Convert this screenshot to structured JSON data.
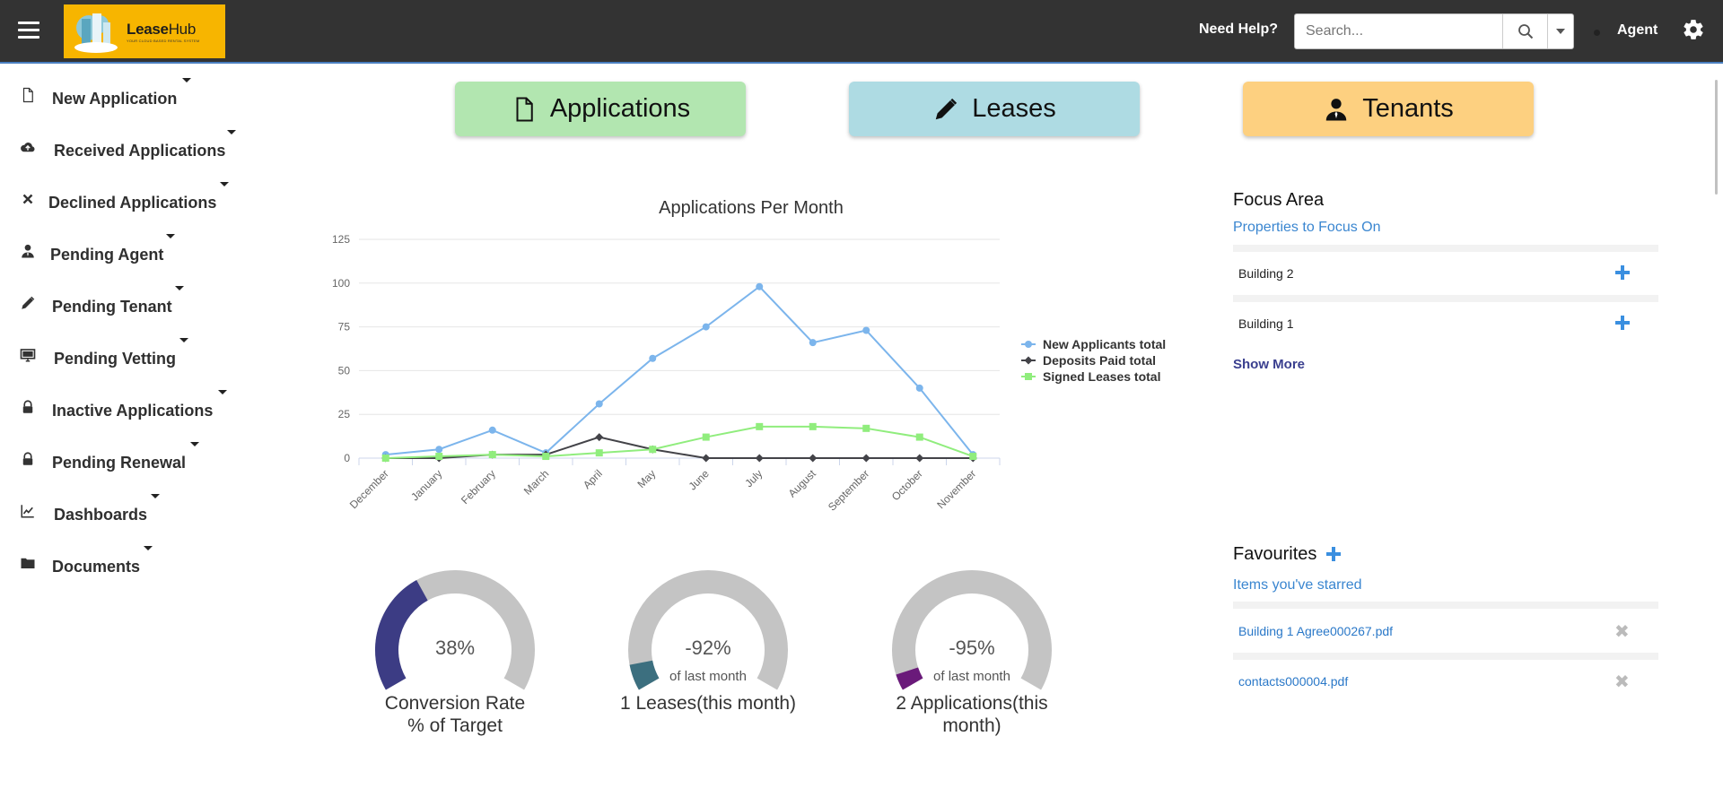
{
  "header": {
    "logo_name_bold": "Lease",
    "logo_name_light": "Hub",
    "logo_tagline": "YOUR CLOUD BASED RENTAL SYSTEM",
    "help_label": "Need Help?",
    "search_placeholder": "Search...",
    "user_label": "Agent"
  },
  "sidebar": {
    "items": [
      {
        "label": "New Application",
        "icon": "file-icon"
      },
      {
        "label": "Received Applications",
        "icon": "cloud-upload-icon"
      },
      {
        "label": "Declined Applications",
        "icon": "close-icon"
      },
      {
        "label": "Pending Agent",
        "icon": "user-icon"
      },
      {
        "label": "Pending Tenant",
        "icon": "pencil-icon"
      },
      {
        "label": "Pending Vetting",
        "icon": "monitor-icon"
      },
      {
        "label": "Inactive Applications",
        "icon": "lock-icon"
      },
      {
        "label": "Pending Renewal",
        "icon": "lock-icon"
      },
      {
        "label": "Dashboards",
        "icon": "line-chart-icon"
      },
      {
        "label": "Documents",
        "icon": "folder-icon"
      }
    ]
  },
  "quick_buttons": [
    {
      "label": "Applications",
      "icon": "file-icon",
      "color": "#b2e6b0"
    },
    {
      "label": "Leases",
      "icon": "pencil-icon",
      "color": "#aedbe3"
    },
    {
      "label": "Tenants",
      "icon": "user-icon",
      "color": "#fdd080"
    }
  ],
  "chart_data": {
    "type": "line",
    "title": "Applications Per Month",
    "categories": [
      "December",
      "January",
      "February",
      "March",
      "April",
      "May",
      "June",
      "July",
      "August",
      "September",
      "October",
      "November"
    ],
    "ylim": [
      0,
      125
    ],
    "yticks": [
      "0",
      "25",
      "50",
      "75",
      "100",
      "125"
    ],
    "grid": true,
    "legend_position": "right",
    "series": [
      {
        "name": "New Applicants total",
        "color": "#7cb5ec",
        "marker": "circle",
        "values": [
          2,
          5,
          16,
          3,
          31,
          57,
          75,
          98,
          66,
          73,
          40,
          2
        ]
      },
      {
        "name": "Deposits Paid total",
        "color": "#434348",
        "marker": "diamond",
        "values": [
          0,
          0,
          2,
          2,
          12,
          5,
          0,
          0,
          0,
          0,
          0,
          0
        ]
      },
      {
        "name": "Signed Leases total",
        "color": "#90ed7d",
        "marker": "square",
        "values": [
          0,
          1,
          2,
          1,
          3,
          5,
          12,
          18,
          18,
          17,
          12,
          1
        ]
      }
    ]
  },
  "gauges": [
    {
      "value_text": "38%",
      "fraction": 0.38,
      "sub": "",
      "title_line1": "Conversion Rate",
      "title_line2": "% of Target",
      "color": "#3c3c84"
    },
    {
      "value_text": "-92%",
      "fraction": 0.08,
      "sub": "of last month",
      "title_line1": "1 Leases(this month)",
      "title_line2": "",
      "color": "#3c6f7f"
    },
    {
      "value_text": "-95%",
      "fraction": 0.05,
      "sub": "of last month",
      "title_line1": "2 Applications(this",
      "title_line2": "month)",
      "color": "#6a1a7a"
    }
  ],
  "focus_area": {
    "title": "Focus Area",
    "subtitle": "Properties to Focus On",
    "items": [
      "Building 2",
      "Building 1"
    ],
    "show_more_label": "Show More"
  },
  "favourites": {
    "title": "Favourites",
    "subtitle": "Items you've starred",
    "items": [
      "Building 1 Agree000267.pdf",
      "contacts000004.pdf"
    ]
  }
}
